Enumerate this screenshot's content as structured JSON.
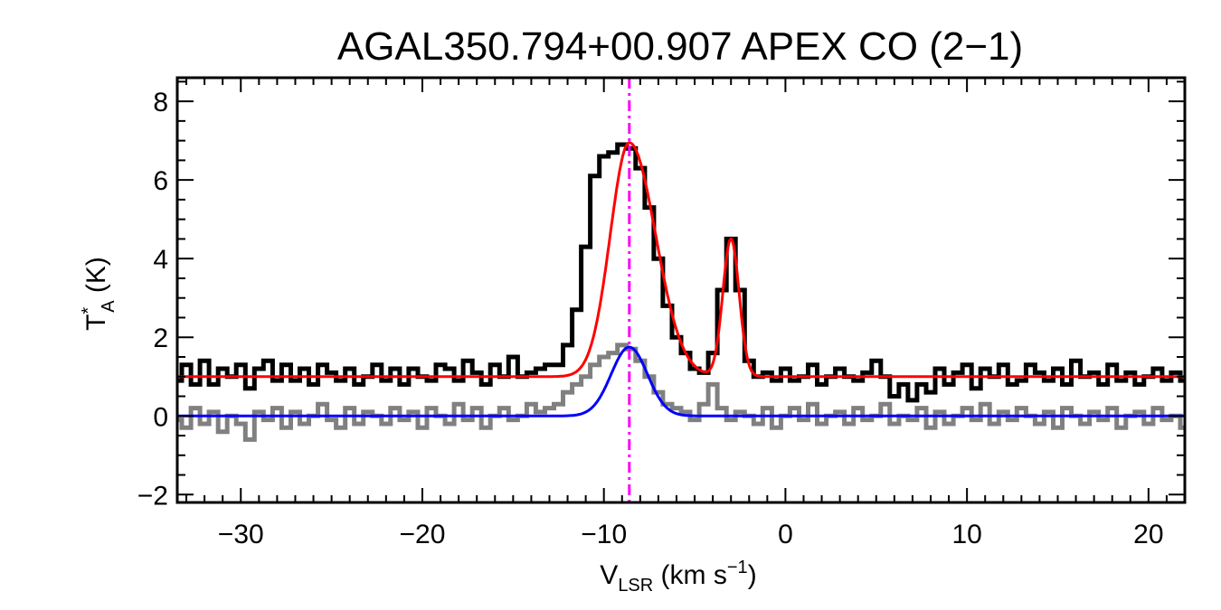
{
  "chart_data": {
    "type": "line",
    "title": "AGAL350.794+00.907  APEX CO (2−1)",
    "xlabel": {
      "main": "V",
      "sub": "LSR",
      "rest": " (km s",
      "sup": "−1",
      "end": ")"
    },
    "ylabel": {
      "main": "T",
      "sup": "*",
      "sub": "A",
      "rest": " (K)"
    },
    "xlim": [
      -33.5,
      22
    ],
    "ylim": [
      -2.2,
      8.6
    ],
    "xticks": [
      -30,
      -20,
      -10,
      0,
      10,
      20
    ],
    "xtick_labels": [
      "−30",
      "−20",
      "−10",
      "0",
      "10",
      "20"
    ],
    "yticks": [
      -2,
      0,
      2,
      4,
      6,
      8
    ],
    "ytick_labels": [
      "−2",
      "0",
      "2",
      "4",
      "6",
      "8"
    ],
    "vline_x": -8.6,
    "colors": {
      "spectrum": "#000000",
      "residual": "#808080",
      "total_fit": "#ff0000",
      "component_fit": "#0000ff",
      "vline": "#ff00ff"
    },
    "series": [
      {
        "kind": "step",
        "color": "#000000",
        "x": [
          -33.5,
          -33.0,
          -32.5,
          -32.0,
          -31.5,
          -31.0,
          -30.5,
          -30.0,
          -29.5,
          -29.0,
          -28.5,
          -28.0,
          -27.5,
          -27.0,
          -26.5,
          -26.0,
          -25.5,
          -25.0,
          -24.5,
          -24.0,
          -23.5,
          -23.0,
          -22.5,
          -22.0,
          -21.5,
          -21.0,
          -20.5,
          -20.0,
          -19.5,
          -19.0,
          -18.5,
          -18.0,
          -17.5,
          -17.0,
          -16.5,
          -16.0,
          -15.5,
          -15.0,
          -14.5,
          -14.0,
          -13.5,
          -13.0,
          -12.5,
          -12.0,
          -11.5,
          -11.0,
          -10.5,
          -10.0,
          -9.5,
          -9.0,
          -8.5,
          -8.0,
          -7.5,
          -7.0,
          -6.5,
          -6.0,
          -5.5,
          -5.0,
          -4.5,
          -4.0,
          -3.5,
          -3.0,
          -2.5,
          -2.0,
          -1.5,
          -1.0,
          -0.5,
          0.0,
          0.5,
          1.0,
          1.5,
          2.0,
          2.5,
          3.0,
          3.5,
          4.0,
          4.5,
          5.0,
          5.5,
          6.0,
          6.5,
          7.0,
          7.5,
          8.0,
          8.5,
          9.0,
          9.5,
          10.0,
          10.5,
          11.0,
          11.5,
          12.0,
          12.5,
          13.0,
          13.5,
          14.0,
          14.5,
          15.0,
          15.5,
          16.0,
          16.5,
          17.0,
          17.5,
          18.0,
          18.5,
          19.0,
          19.5,
          20.0,
          20.5,
          21.0,
          21.5,
          22.0
        ],
        "y": [
          0.9,
          1.3,
          0.8,
          1.4,
          0.8,
          1.2,
          1.0,
          1.3,
          0.7,
          1.2,
          1.4,
          0.9,
          1.3,
          0.9,
          1.2,
          0.8,
          1.3,
          1.1,
          0.9,
          1.2,
          0.8,
          1.0,
          1.3,
          0.9,
          1.2,
          0.8,
          1.2,
          1.0,
          0.9,
          1.3,
          1.2,
          0.9,
          1.4,
          1.1,
          0.8,
          1.3,
          1.0,
          1.5,
          1.0,
          1.1,
          1.2,
          1.3,
          1.3,
          1.8,
          2.7,
          4.3,
          6.1,
          6.6,
          6.7,
          6.9,
          6.8,
          6.3,
          5.3,
          4.0,
          2.8,
          2.0,
          1.6,
          1.2,
          1.1,
          1.6,
          3.2,
          4.5,
          3.2,
          1.4,
          1.0,
          1.1,
          0.9,
          1.2,
          0.9,
          1.0,
          1.3,
          0.8,
          1.0,
          1.2,
          1.0,
          0.9,
          1.1,
          1.4,
          1.0,
          0.5,
          0.8,
          0.4,
          0.8,
          0.6,
          1.2,
          0.8,
          1.1,
          1.3,
          0.7,
          1.2,
          1.0,
          1.3,
          0.8,
          0.9,
          1.3,
          1.1,
          0.9,
          1.2,
          0.8,
          1.4,
          1.0,
          1.1,
          0.8,
          1.3,
          0.9,
          1.1,
          0.8,
          1.0,
          1.2,
          0.9,
          1.1,
          0.9
        ]
      },
      {
        "kind": "step",
        "color": "#808080",
        "x": [
          -33.5,
          -33.0,
          -32.5,
          -32.0,
          -31.5,
          -31.0,
          -30.5,
          -30.0,
          -29.5,
          -29.0,
          -28.5,
          -28.0,
          -27.5,
          -27.0,
          -26.5,
          -26.0,
          -25.5,
          -25.0,
          -24.5,
          -24.0,
          -23.5,
          -23.0,
          -22.5,
          -22.0,
          -21.5,
          -21.0,
          -20.5,
          -20.0,
          -19.5,
          -19.0,
          -18.5,
          -18.0,
          -17.5,
          -17.0,
          -16.5,
          -16.0,
          -15.5,
          -15.0,
          -14.5,
          -14.0,
          -13.5,
          -13.0,
          -12.5,
          -12.0,
          -11.5,
          -11.0,
          -10.5,
          -10.0,
          -9.5,
          -9.0,
          -8.5,
          -8.0,
          -7.5,
          -7.0,
          -6.5,
          -6.0,
          -5.5,
          -5.0,
          -4.5,
          -4.0,
          -3.5,
          -3.0,
          -2.5,
          -2.0,
          -1.5,
          -1.0,
          -0.5,
          0.0,
          0.5,
          1.0,
          1.5,
          2.0,
          2.5,
          3.0,
          3.5,
          4.0,
          4.5,
          5.0,
          5.5,
          6.0,
          6.5,
          7.0,
          7.5,
          8.0,
          8.5,
          9.0,
          9.5,
          10.0,
          10.5,
          11.0,
          11.5,
          12.0,
          12.5,
          13.0,
          13.5,
          14.0,
          14.5,
          15.0,
          15.5,
          16.0,
          16.5,
          17.0,
          17.5,
          18.0,
          18.5,
          19.0,
          19.5,
          20.0,
          20.5,
          21.0,
          21.5,
          22.0
        ],
        "y": [
          -0.1,
          -0.3,
          0.2,
          -0.2,
          0.1,
          -0.4,
          0.0,
          -0.2,
          -0.6,
          0.1,
          -0.1,
          0.2,
          -0.3,
          0.1,
          -0.2,
          0.0,
          0.3,
          -0.1,
          -0.3,
          0.2,
          -0.2,
          0.1,
          0.0,
          -0.2,
          0.2,
          -0.1,
          0.1,
          -0.3,
          0.2,
          0.0,
          -0.2,
          0.3,
          -0.1,
          0.2,
          -0.3,
          0.0,
          0.2,
          -0.1,
          0.0,
          0.3,
          0.1,
          0.2,
          0.3,
          0.6,
          0.8,
          1.0,
          1.3,
          1.5,
          1.6,
          1.8,
          1.7,
          1.4,
          1.0,
          0.6,
          0.3,
          0.2,
          0.1,
          -0.1,
          0.3,
          0.8,
          0.2,
          -0.1,
          0.1,
          0.0,
          -0.2,
          0.2,
          -0.3,
          0.0,
          0.2,
          -0.1,
          0.3,
          -0.2,
          0.0,
          0.1,
          -0.2,
          0.2,
          -0.1,
          0.0,
          0.3,
          -0.2,
          0.0,
          -0.1,
          0.2,
          -0.3,
          0.1,
          -0.2,
          0.0,
          0.2,
          -0.1,
          0.3,
          -0.2,
          0.1,
          -0.1,
          0.2,
          0.0,
          -0.2,
          0.1,
          -0.3,
          0.2,
          0.0,
          -0.2,
          0.1,
          -0.1,
          0.2,
          -0.3,
          0.0,
          0.1,
          -0.2,
          0.2,
          -0.1,
          0.0,
          -0.3
        ]
      },
      {
        "kind": "model",
        "color": "#ff0000",
        "baseline": 1.0,
        "components": [
          {
            "amp": 5.95,
            "center": -8.6,
            "sigma_left": 1.05,
            "sigma_right": 1.45
          },
          {
            "amp": 3.5,
            "center": -3.0,
            "sigma_left": 0.45,
            "sigma_right": 0.45
          }
        ]
      },
      {
        "kind": "model",
        "color": "#0000ff",
        "baseline": 0.0,
        "components": [
          {
            "amp": 1.75,
            "center": -8.6,
            "sigma_left": 1.0,
            "sigma_right": 1.0
          }
        ]
      }
    ]
  }
}
